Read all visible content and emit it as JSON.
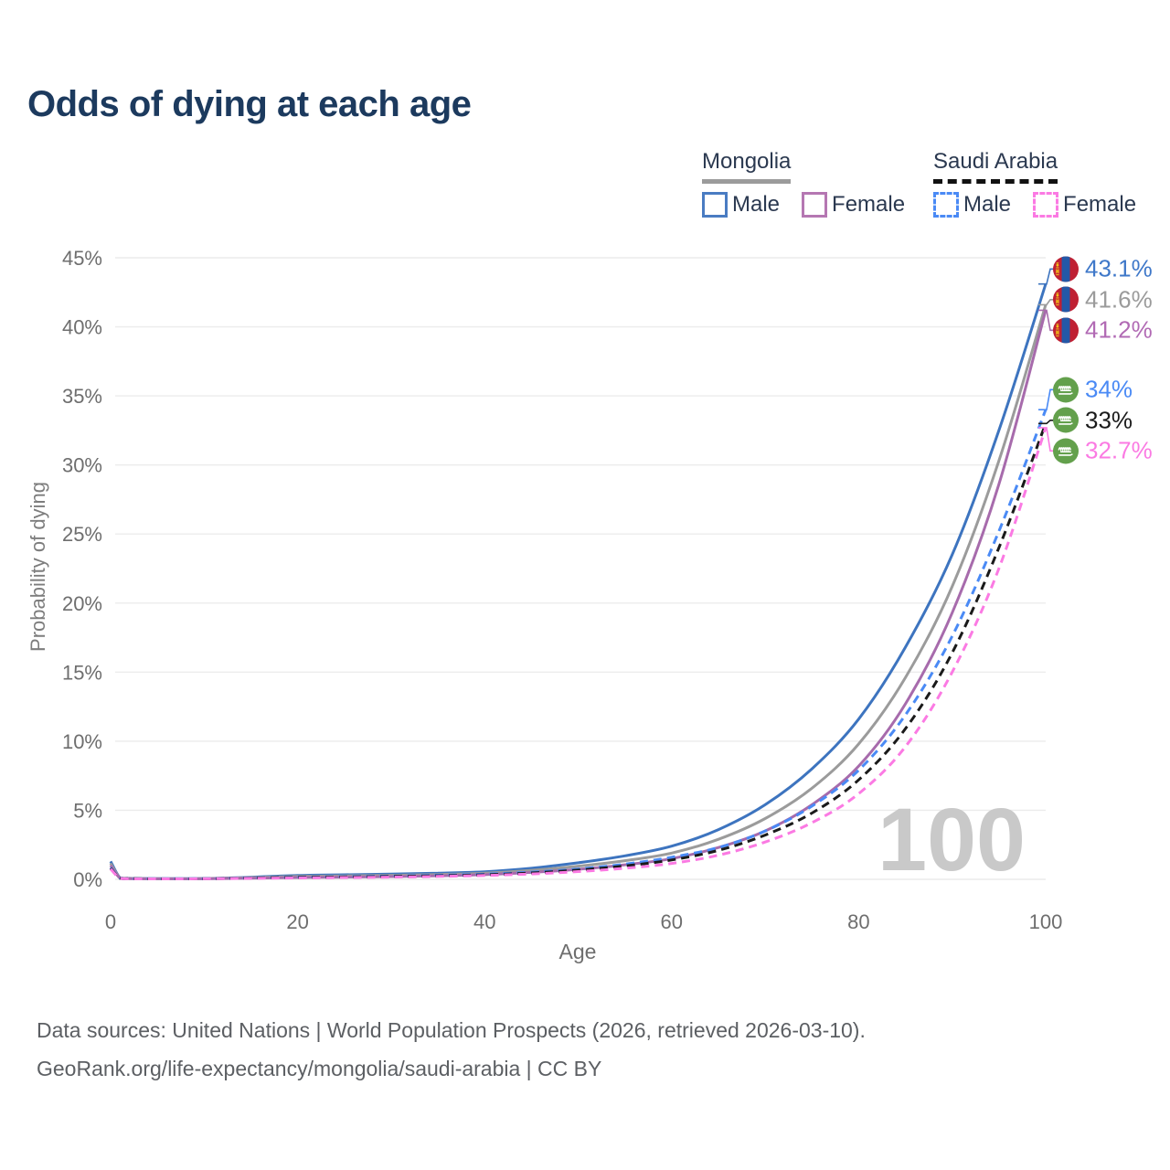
{
  "title": "Odds of dying at each age",
  "legend": {
    "groups": [
      {
        "name": "Mongolia",
        "underline_style": "solid",
        "underline_color": "#9b9b9b",
        "items": [
          {
            "label": "Male",
            "color": "#4a7cc2",
            "dashed": false
          },
          {
            "label": "Female",
            "color": "#b577b2",
            "dashed": false
          }
        ]
      },
      {
        "name": "Saudi Arabia",
        "underline_style": "dashed",
        "underline_color": "#111111",
        "items": [
          {
            "label": "Male",
            "color": "#4a8af5",
            "dashed": true
          },
          {
            "label": "Female",
            "color": "#fb7ae3",
            "dashed": true
          }
        ]
      }
    ]
  },
  "footer": {
    "lines": [
      "Data sources: United Nations | World Population Prospects (2026, retrieved 2026-03-10).",
      "GeoRank.org/life-expectancy/mongolia/saudi-arabia | CC BY"
    ]
  },
  "chart_data": {
    "type": "line",
    "title": "Odds of dying at each age",
    "xlabel": "Age",
    "ylabel": "Probability of dying",
    "xlim": [
      0,
      100
    ],
    "ylim": [
      0,
      45
    ],
    "unit": "%",
    "x_ticks": [
      0,
      20,
      40,
      60,
      80,
      100
    ],
    "y_ticks": [
      0,
      5,
      10,
      15,
      20,
      25,
      30,
      35,
      40,
      45
    ],
    "grid": "horizontal",
    "legend_position": "top-right",
    "watermark": "100",
    "ages": [
      0,
      1,
      2,
      5,
      10,
      15,
      20,
      25,
      30,
      35,
      40,
      45,
      50,
      55,
      60,
      65,
      70,
      75,
      80,
      85,
      90,
      95,
      100
    ],
    "series": [
      {
        "name": "Mongolia Male",
        "country": "Mongolia",
        "sex": "Male",
        "flag": "mn",
        "color": "#3d74bf",
        "label_color": "#3f78c9",
        "dashed": false,
        "end_label": "43.1%",
        "values": [
          1.3,
          0.12,
          0.07,
          0.05,
          0.06,
          0.15,
          0.28,
          0.33,
          0.38,
          0.45,
          0.55,
          0.8,
          1.2,
          1.7,
          2.4,
          3.6,
          5.4,
          8.0,
          11.6,
          16.8,
          23.5,
          32.5,
          43.1
        ]
      },
      {
        "name": "Mongolia Both sexes",
        "country": "Mongolia",
        "sex": "Both",
        "flag": "mn",
        "color": "#9b9b9b",
        "label_color": "#9b9b9b",
        "dashed": false,
        "end_label": "41.6%",
        "values": [
          1.15,
          0.1,
          0.06,
          0.04,
          0.05,
          0.12,
          0.21,
          0.25,
          0.29,
          0.35,
          0.45,
          0.65,
          0.95,
          1.35,
          1.9,
          2.9,
          4.4,
          6.6,
          9.8,
          14.6,
          21.2,
          30.3,
          41.6
        ]
      },
      {
        "name": "Mongolia Female",
        "country": "Mongolia",
        "sex": "Female",
        "flag": "mn",
        "color": "#a76bac",
        "label_color": "#b16ab4",
        "dashed": false,
        "end_label": "41.2%",
        "values": [
          1.0,
          0.09,
          0.05,
          0.04,
          0.04,
          0.08,
          0.13,
          0.16,
          0.2,
          0.26,
          0.34,
          0.5,
          0.73,
          1.05,
          1.5,
          2.3,
          3.5,
          5.4,
          8.2,
          12.7,
          19.3,
          28.6,
          41.2
        ]
      },
      {
        "name": "Saudi Arabia Male",
        "country": "Saudi Arabia",
        "sex": "Male",
        "flag": "sa",
        "color": "#4a8af5",
        "label_color": "#4a8af5",
        "dashed": true,
        "end_label": "34%",
        "values": [
          0.85,
          0.08,
          0.05,
          0.04,
          0.05,
          0.1,
          0.16,
          0.2,
          0.24,
          0.3,
          0.38,
          0.52,
          0.75,
          1.1,
          1.6,
          2.3,
          3.5,
          5.3,
          7.9,
          11.9,
          17.6,
          25.2,
          34.0
        ]
      },
      {
        "name": "Saudi Arabia Both sexes",
        "country": "Saudi Arabia",
        "sex": "Both",
        "flag": "sa",
        "color": "#1a1a1a",
        "label_color": "#1a1a1a",
        "dashed": true,
        "end_label": "33%",
        "values": [
          0.8,
          0.07,
          0.05,
          0.03,
          0.04,
          0.09,
          0.14,
          0.17,
          0.21,
          0.26,
          0.33,
          0.46,
          0.67,
          0.97,
          1.4,
          2.1,
          3.2,
          4.8,
          7.2,
          10.9,
          16.4,
          24.0,
          33.0
        ]
      },
      {
        "name": "Saudi Arabia Female",
        "country": "Saudi Arabia",
        "sex": "Female",
        "flag": "sa",
        "color": "#fb7ae3",
        "label_color": "#fb7ae3",
        "dashed": true,
        "end_label": "32.7%",
        "values": [
          0.75,
          0.07,
          0.04,
          0.03,
          0.04,
          0.07,
          0.1,
          0.13,
          0.16,
          0.21,
          0.28,
          0.39,
          0.56,
          0.8,
          1.15,
          1.75,
          2.7,
          4.1,
          6.2,
          9.6,
          15.0,
          22.5,
          32.7
        ]
      }
    ]
  }
}
